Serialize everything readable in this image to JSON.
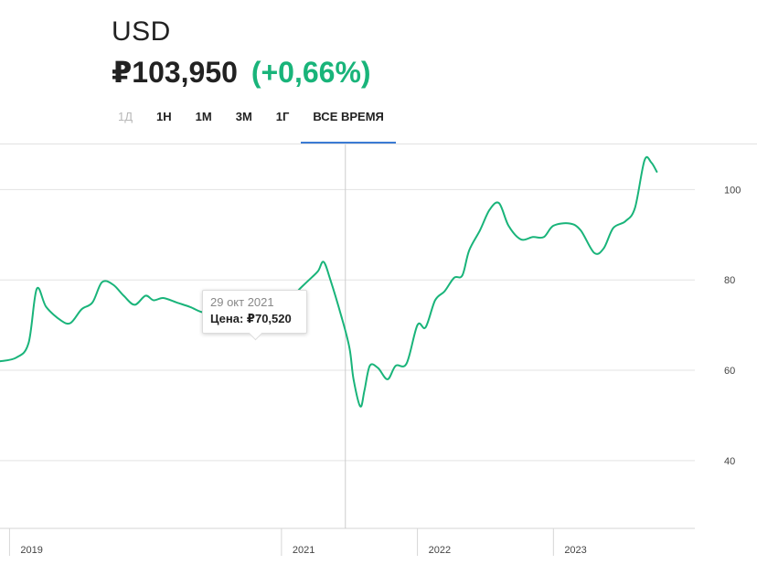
{
  "header": {
    "title": "USD",
    "price": "₽103,950",
    "change": "(+0,66%)",
    "change_color": "#19b47a"
  },
  "tabs": [
    {
      "label": "1Д",
      "state": "disabled"
    },
    {
      "label": "1Н",
      "state": "normal"
    },
    {
      "label": "1М",
      "state": "normal"
    },
    {
      "label": "3М",
      "state": "normal"
    },
    {
      "label": "1Г",
      "state": "normal"
    },
    {
      "label": "ВСЕ ВРЕМЯ",
      "state": "active"
    }
  ],
  "accent_color": "#3b7bd4",
  "tooltip": {
    "date": "29 окт 2021",
    "price_label": "Цена:",
    "price_value": "₽70,520"
  },
  "chart_data": {
    "type": "line",
    "title": "",
    "xlabel": "",
    "ylabel": "",
    "line_color": "#19b47a",
    "ylim": [
      25,
      110
    ],
    "yticks": [
      40,
      60,
      80,
      100
    ],
    "grid": true,
    "x_ticks": [
      {
        "label": "2019",
        "x": 2019.0
      },
      {
        "label": "2021",
        "x": 2021.0
      },
      {
        "label": "2022",
        "x": 2022.0
      },
      {
        "label": "2023",
        "x": 2023.0
      }
    ],
    "xlim": [
      2018.93,
      2024.04
    ],
    "hover_x": 2021.47,
    "series": [
      {
        "values": [
          [
            2018.93,
            62.0
          ],
          [
            2019.05,
            62.8
          ],
          [
            2019.14,
            66.0
          ],
          [
            2019.2,
            78.0
          ],
          [
            2019.27,
            74.0
          ],
          [
            2019.38,
            71.0
          ],
          [
            2019.45,
            70.5
          ],
          [
            2019.53,
            73.5
          ],
          [
            2019.61,
            75.0
          ],
          [
            2019.68,
            79.5
          ],
          [
            2019.76,
            79.0
          ],
          [
            2019.84,
            76.5
          ],
          [
            2019.92,
            74.5
          ],
          [
            2020.0,
            76.5
          ],
          [
            2020.06,
            75.5
          ],
          [
            2020.13,
            76.0
          ],
          [
            2020.23,
            75.0
          ],
          [
            2020.33,
            74.0
          ],
          [
            2020.43,
            72.8
          ],
          [
            2020.55,
            73.5
          ],
          [
            2020.7,
            74.0
          ],
          [
            2020.8,
            72.5
          ],
          [
            2020.88,
            71.0
          ],
          [
            2020.95,
            73.0
          ],
          [
            2021.0,
            75.0
          ],
          [
            2021.05,
            76.0
          ],
          [
            2021.1,
            77.0
          ],
          [
            2021.15,
            78.5
          ],
          [
            2021.22,
            80.5
          ],
          [
            2021.27,
            82.0
          ],
          [
            2021.31,
            84.0
          ],
          [
            2021.36,
            80.0
          ],
          [
            2021.44,
            72.0
          ],
          [
            2021.5,
            65.0
          ],
          [
            2021.53,
            58.0
          ],
          [
            2021.58,
            52.0
          ],
          [
            2021.61,
            55.5
          ],
          [
            2021.65,
            61.0
          ],
          [
            2021.71,
            60.5
          ],
          [
            2021.78,
            58.0
          ],
          [
            2021.84,
            61.0
          ],
          [
            2021.92,
            61.5
          ],
          [
            2022.0,
            70.0
          ],
          [
            2022.06,
            69.5
          ],
          [
            2022.13,
            75.5
          ],
          [
            2022.2,
            77.5
          ],
          [
            2022.27,
            80.5
          ],
          [
            2022.33,
            81.0
          ],
          [
            2022.38,
            86.5
          ],
          [
            2022.46,
            91.0
          ],
          [
            2022.53,
            95.5
          ],
          [
            2022.6,
            97.0
          ],
          [
            2022.67,
            92.0
          ],
          [
            2022.76,
            89.0
          ],
          [
            2022.85,
            89.5
          ],
          [
            2022.93,
            89.5
          ],
          [
            2023.0,
            92.0
          ],
          [
            2023.12,
            92.5
          ],
          [
            2023.2,
            91.0
          ],
          [
            2023.3,
            86.0
          ],
          [
            2023.37,
            87.0
          ],
          [
            2023.44,
            91.5
          ],
          [
            2023.53,
            93.0
          ],
          [
            2023.6,
            96.0
          ],
          [
            2023.67,
            106.5
          ],
          [
            2023.72,
            106.0
          ],
          [
            2023.76,
            103.95
          ]
        ]
      }
    ]
  }
}
